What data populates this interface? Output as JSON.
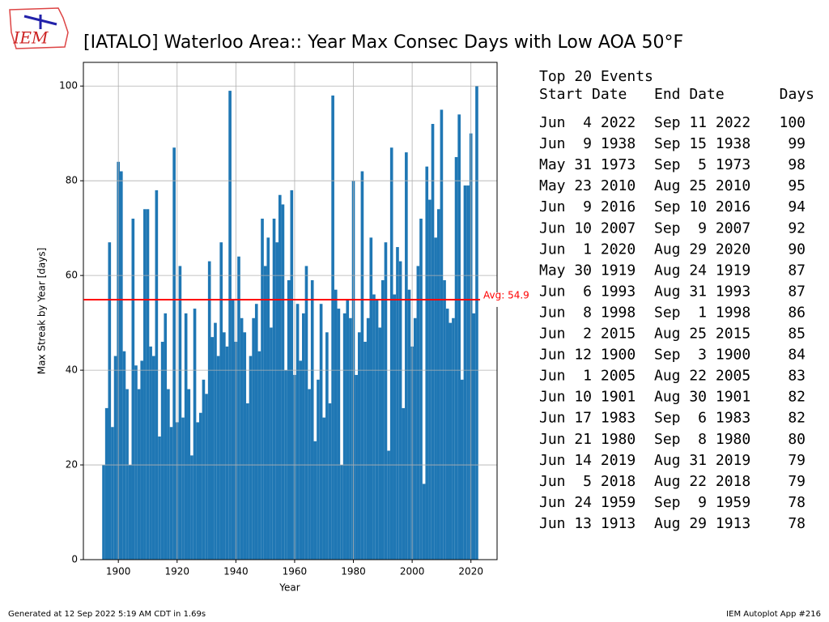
{
  "logo_text": "IEM",
  "chart_data": {
    "type": "bar",
    "title": "[IATALO] Waterloo Area:: Year Max Consec Days with Low AOA 50°F",
    "x_label": "Year",
    "y_label": "Max Streak by Year [days]",
    "x": [
      1895,
      1896,
      1897,
      1898,
      1899,
      1900,
      1901,
      1902,
      1903,
      1904,
      1905,
      1906,
      1907,
      1908,
      1909,
      1910,
      1911,
      1912,
      1913,
      1914,
      1915,
      1916,
      1917,
      1918,
      1919,
      1920,
      1921,
      1922,
      1923,
      1924,
      1925,
      1926,
      1927,
      1928,
      1929,
      1930,
      1931,
      1932,
      1933,
      1934,
      1935,
      1936,
      1937,
      1938,
      1939,
      1940,
      1941,
      1942,
      1943,
      1944,
      1945,
      1946,
      1947,
      1948,
      1949,
      1950,
      1951,
      1952,
      1953,
      1954,
      1955,
      1956,
      1957,
      1958,
      1959,
      1960,
      1961,
      1962,
      1963,
      1964,
      1965,
      1966,
      1967,
      1968,
      1969,
      1970,
      1971,
      1972,
      1973,
      1974,
      1975,
      1976,
      1977,
      1978,
      1979,
      1980,
      1981,
      1982,
      1983,
      1984,
      1985,
      1986,
      1987,
      1988,
      1989,
      1990,
      1991,
      1992,
      1993,
      1994,
      1995,
      1996,
      1997,
      1998,
      1999,
      2000,
      2001,
      2002,
      2003,
      2004,
      2005,
      2006,
      2007,
      2008,
      2009,
      2010,
      2011,
      2012,
      2013,
      2014,
      2015,
      2016,
      2017,
      2018,
      2019,
      2020,
      2021,
      2022
    ],
    "values": [
      20,
      32,
      67,
      28,
      43,
      84,
      82,
      44,
      36,
      20,
      72,
      41,
      36,
      42,
      74,
      74,
      45,
      43,
      78,
      26,
      46,
      52,
      36,
      28,
      87,
      29,
      62,
      30,
      52,
      36,
      22,
      53,
      29,
      31,
      38,
      35,
      63,
      47,
      50,
      43,
      67,
      48,
      45,
      99,
      55,
      46,
      64,
      51,
      48,
      33,
      43,
      51,
      54,
      44,
      72,
      62,
      68,
      49,
      72,
      67,
      77,
      75,
      40,
      59,
      78,
      39,
      54,
      42,
      52,
      62,
      36,
      59,
      25,
      38,
      54,
      30,
      48,
      33,
      98,
      57,
      53,
      20,
      52,
      55,
      51,
      80,
      39,
      48,
      82,
      46,
      51,
      68,
      56,
      55,
      49,
      59,
      67,
      23,
      87,
      56,
      66,
      63,
      32,
      86,
      57,
      45,
      51,
      62,
      72,
      16,
      83,
      76,
      92,
      68,
      74,
      95,
      59,
      53,
      50,
      51,
      85,
      94,
      38,
      79,
      79,
      90,
      52,
      100
    ],
    "color": "#1f77b4",
    "xlim": [
      1888.1,
      2028.9
    ],
    "xticks": [
      1900,
      1920,
      1940,
      1960,
      1980,
      2000,
      2020
    ],
    "ylim": [
      0,
      105
    ],
    "yticks": [
      0,
      20,
      40,
      60,
      80,
      100
    ],
    "grid": true,
    "avg": 54.9,
    "avg_label": "Avg: 54.9",
    "avg_color": "#ff0000"
  },
  "events": {
    "title": "Top 20 Events",
    "headers": [
      "Start Date",
      "End Date",
      "Days"
    ],
    "rows": [
      [
        "Jun  4 2022",
        "Sep 11 2022",
        100
      ],
      [
        "Jun  9 1938",
        "Sep 15 1938",
        99
      ],
      [
        "May 31 1973",
        "Sep  5 1973",
        98
      ],
      [
        "May 23 2010",
        "Aug 25 2010",
        95
      ],
      [
        "Jun  9 2016",
        "Sep 10 2016",
        94
      ],
      [
        "Jun 10 2007",
        "Sep  9 2007",
        92
      ],
      [
        "Jun  1 2020",
        "Aug 29 2020",
        90
      ],
      [
        "May 30 1919",
        "Aug 24 1919",
        87
      ],
      [
        "Jun  6 1993",
        "Aug 31 1993",
        87
      ],
      [
        "Jun  8 1998",
        "Sep  1 1998",
        86
      ],
      [
        "Jun  2 2015",
        "Aug 25 2015",
        85
      ],
      [
        "Jun 12 1900",
        "Sep  3 1900",
        84
      ],
      [
        "Jun  1 2005",
        "Aug 22 2005",
        83
      ],
      [
        "Jun 10 1901",
        "Aug 30 1901",
        82
      ],
      [
        "Jun 17 1983",
        "Sep  6 1983",
        82
      ],
      [
        "Jun 21 1980",
        "Sep  8 1980",
        80
      ],
      [
        "Jun 14 2019",
        "Aug 31 2019",
        79
      ],
      [
        "Jun  5 2018",
        "Aug 22 2018",
        79
      ],
      [
        "Jun 24 1959",
        "Sep  9 1959",
        78
      ],
      [
        "Jun 13 1913",
        "Aug 29 1913",
        78
      ]
    ]
  },
  "footer": {
    "left": "Generated at 12 Sep 2022 5:19 AM CDT in 1.69s",
    "right": "IEM Autoplot App #216"
  }
}
